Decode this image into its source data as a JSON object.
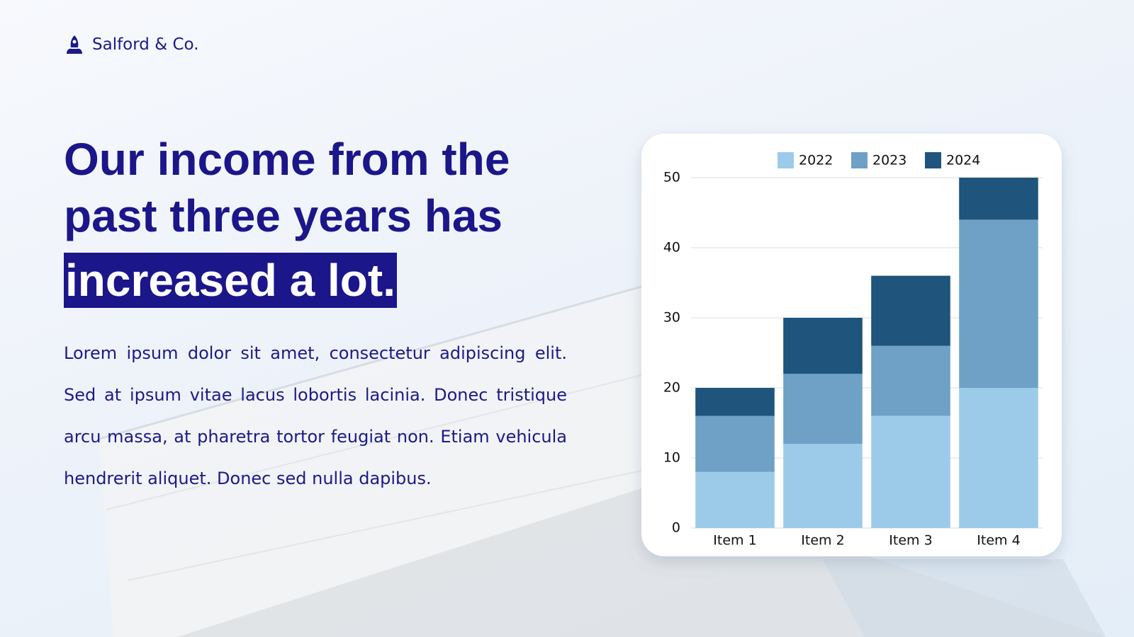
{
  "brand": "Salford & Co.",
  "headline": {
    "text": "Our income from the past three years  has",
    "highlight": "increased a lot."
  },
  "body": "Lorem ipsum dolor sit amet, consectetur adipiscing elit. Sed at ipsum vitae lacus lobortis lacinia. Donec tristique arcu massa, at pharetra tortor feugiat non. Etiam vehicula hendrerit aliquet. Donec sed nulla dapibus.",
  "chart_data": {
    "type": "stacked-bar",
    "categories": [
      "Item 1",
      "Item 2",
      "Item 3",
      "Item 4"
    ],
    "series": [
      {
        "name": "2022",
        "color": "#9ccbea",
        "values": [
          8,
          12,
          16,
          20
        ]
      },
      {
        "name": "2023",
        "color": "#6fa1c6",
        "values": [
          8,
          10,
          10,
          24
        ]
      },
      {
        "name": "2024",
        "color": "#1f547c",
        "values": [
          4,
          8,
          10,
          6
        ]
      }
    ],
    "ylim": [
      0,
      50
    ],
    "yticks": [
      0,
      10,
      20,
      30,
      40,
      50
    ],
    "grid": true,
    "legend": "top"
  }
}
